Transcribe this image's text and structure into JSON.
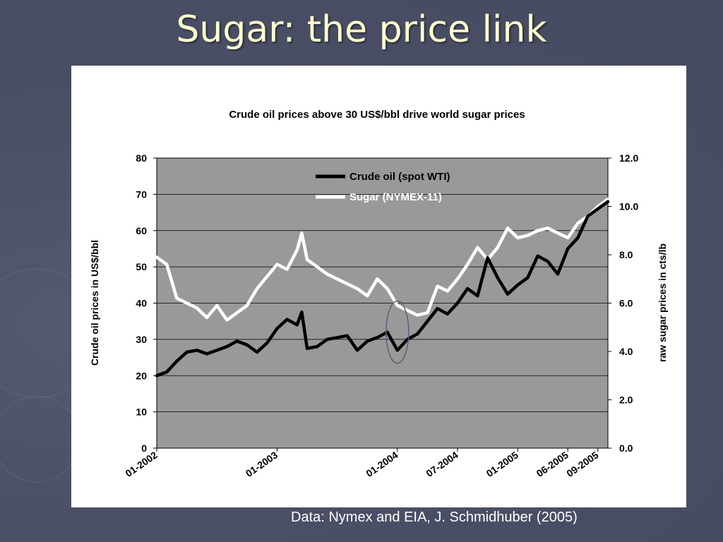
{
  "slide": {
    "title": "Sugar: the price link",
    "source": "Data: Nymex and EIA, J. Schmidhuber (2005)"
  },
  "colors": {
    "plot_bg": "#999999",
    "oil_line": "#000000",
    "sugar_line": "#ffffff",
    "highlight": "#5a5e7a"
  },
  "chart_data": {
    "type": "line",
    "title": "Crude oil prices above 30 US$/bbl drive world sugar prices",
    "ylabel": "Crude oil prices in US$/bbl",
    "ylabel_right": "raw sugar prices in cts/lb",
    "ylim": [
      0,
      80
    ],
    "ylim_right": [
      0,
      12
    ],
    "yticks": [
      0,
      10,
      20,
      30,
      40,
      50,
      60,
      70,
      80
    ],
    "yticks_right": [
      "0.0",
      "2.0",
      "4.0",
      "6.0",
      "8.0",
      "10.0",
      "12.0"
    ],
    "xlim": [
      "2002-01",
      "2005-10"
    ],
    "xticks": [
      {
        "date": "2002-01",
        "label": "01-2002"
      },
      {
        "date": "2003-01",
        "label": "01-2003"
      },
      {
        "date": "2004-01",
        "label": "01-2004"
      },
      {
        "date": "2004-07",
        "label": "07-2004"
      },
      {
        "date": "2005-01",
        "label": "01-2005"
      },
      {
        "date": "2005-06",
        "label": "06-2005"
      },
      {
        "date": "2005-09",
        "label": "09-2005"
      }
    ],
    "grid": true,
    "legend": "top-center",
    "annotation": {
      "type": "ellipse",
      "x": "2004-01",
      "y": 32
    },
    "series": [
      {
        "name": "Crude oil (spot WTI)",
        "axis": "left",
        "points": [
          [
            "2002-01",
            20
          ],
          [
            "2002-02",
            21
          ],
          [
            "2002-03",
            24
          ],
          [
            "2002-04",
            26.5
          ],
          [
            "2002-05",
            27
          ],
          [
            "2002-06",
            26
          ],
          [
            "2002-07",
            27
          ],
          [
            "2002-08",
            28
          ],
          [
            "2002-09",
            29.5
          ],
          [
            "2002-10",
            28.5
          ],
          [
            "2002-11",
            26.5
          ],
          [
            "2002-12",
            29
          ],
          [
            "2003-01",
            33
          ],
          [
            "2003-02",
            35.5
          ],
          [
            "2003-03",
            34
          ],
          [
            "2003-03-15",
            37.5
          ],
          [
            "2003-04",
            27.5
          ],
          [
            "2003-05",
            28
          ],
          [
            "2003-06",
            30
          ],
          [
            "2003-07",
            30.5
          ],
          [
            "2003-08",
            31
          ],
          [
            "2003-09",
            27
          ],
          [
            "2003-10",
            29.5
          ],
          [
            "2003-11",
            30.5
          ],
          [
            "2003-12",
            32
          ],
          [
            "2004-01",
            27
          ],
          [
            "2004-02",
            30
          ],
          [
            "2004-03",
            31.5
          ],
          [
            "2004-04",
            35
          ],
          [
            "2004-05",
            38.5
          ],
          [
            "2004-06",
            37
          ],
          [
            "2004-07",
            40
          ],
          [
            "2004-08",
            44
          ],
          [
            "2004-09",
            42
          ],
          [
            "2004-10",
            52.5
          ],
          [
            "2004-11",
            47
          ],
          [
            "2004-12",
            42.5
          ],
          [
            "2005-01",
            45
          ],
          [
            "2005-02",
            47
          ],
          [
            "2005-03",
            53
          ],
          [
            "2005-04",
            51.5
          ],
          [
            "2005-05",
            48
          ],
          [
            "2005-06",
            55
          ],
          [
            "2005-07",
            58
          ],
          [
            "2005-08",
            64
          ],
          [
            "2005-09",
            66
          ],
          [
            "2005-10",
            68
          ]
        ]
      },
      {
        "name": "Sugar (NYMEX-11)",
        "axis": "right",
        "points": [
          [
            "2002-01",
            7.9
          ],
          [
            "2002-02",
            7.6
          ],
          [
            "2002-03",
            6.2
          ],
          [
            "2002-04",
            6.0
          ],
          [
            "2002-05",
            5.8
          ],
          [
            "2002-06",
            5.4
          ],
          [
            "2002-07",
            5.9
          ],
          [
            "2002-08",
            5.3
          ],
          [
            "2002-09",
            5.6
          ],
          [
            "2002-10",
            5.9
          ],
          [
            "2002-11",
            6.6
          ],
          [
            "2002-12",
            7.1
          ],
          [
            "2003-01",
            7.6
          ],
          [
            "2003-02",
            7.4
          ],
          [
            "2003-03",
            8.2
          ],
          [
            "2003-03-15",
            8.9
          ],
          [
            "2003-04",
            7.8
          ],
          [
            "2003-05",
            7.5
          ],
          [
            "2003-06",
            7.2
          ],
          [
            "2003-07",
            7.0
          ],
          [
            "2003-08",
            6.8
          ],
          [
            "2003-09",
            6.6
          ],
          [
            "2003-10",
            6.3
          ],
          [
            "2003-11",
            7.0
          ],
          [
            "2003-12",
            6.6
          ],
          [
            "2004-01",
            5.9
          ],
          [
            "2004-02",
            5.7
          ],
          [
            "2004-03",
            5.5
          ],
          [
            "2004-04",
            5.6
          ],
          [
            "2004-05",
            6.7
          ],
          [
            "2004-06",
            6.5
          ],
          [
            "2004-07",
            7.0
          ],
          [
            "2004-08",
            7.6
          ],
          [
            "2004-09",
            8.3
          ],
          [
            "2004-10",
            7.8
          ],
          [
            "2004-11",
            8.3
          ],
          [
            "2004-12",
            9.1
          ],
          [
            "2005-01",
            8.7
          ],
          [
            "2005-02",
            8.8
          ],
          [
            "2005-03",
            9.0
          ],
          [
            "2005-04",
            9.1
          ],
          [
            "2005-05",
            8.9
          ],
          [
            "2005-06",
            8.7
          ],
          [
            "2005-07",
            9.3
          ],
          [
            "2005-08",
            9.6
          ],
          [
            "2005-09",
            10.0
          ],
          [
            "2005-10",
            10.3
          ]
        ]
      }
    ]
  }
}
